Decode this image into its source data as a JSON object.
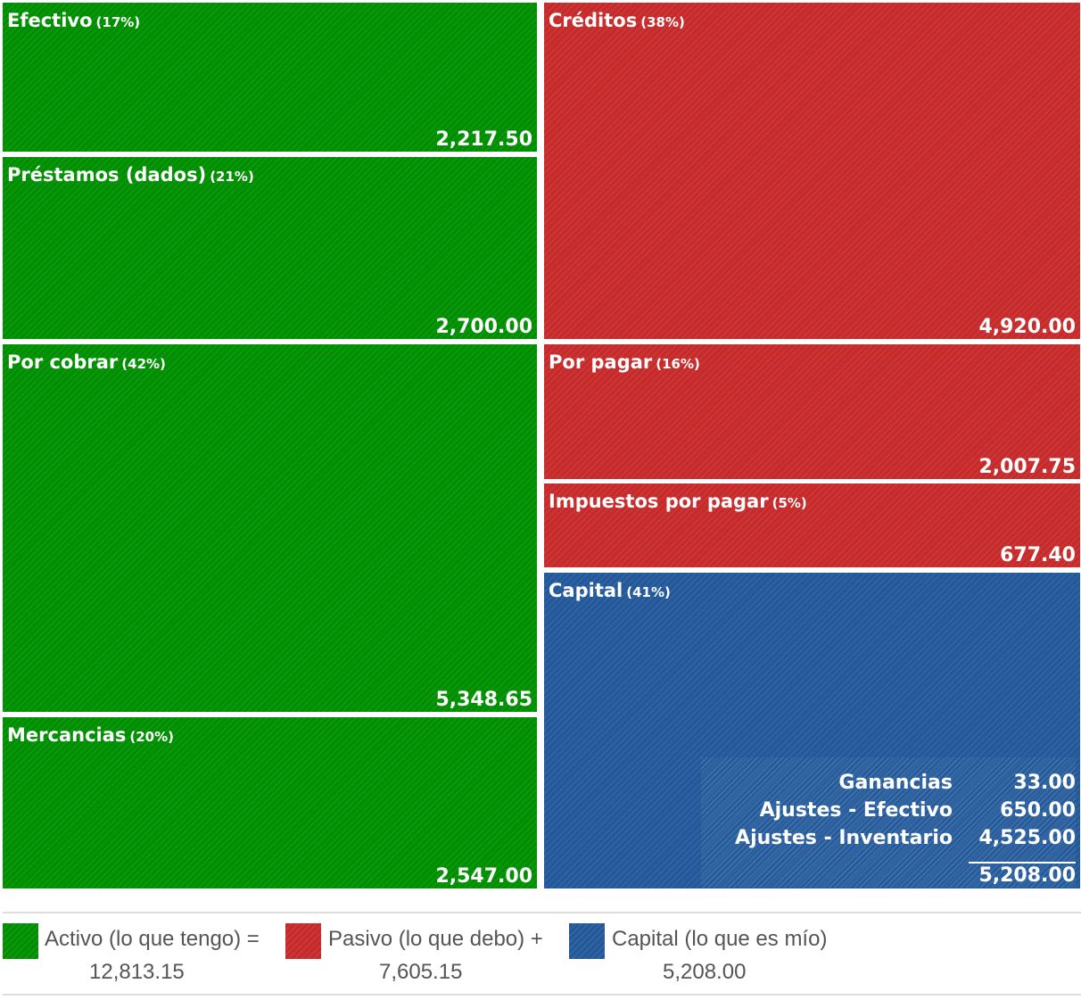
{
  "colors": {
    "activo": "#008f00",
    "pasivo": "#c72a2a",
    "capital": "#23599a"
  },
  "chart_data": {
    "type": "treemap",
    "groups": [
      {
        "name": "Activo",
        "items": [
          {
            "label": "Efectivo",
            "pct": "(17%)",
            "value": "2,217.50"
          },
          {
            "label": "Préstamos (dados)",
            "pct": "(21%)",
            "value": "2,700.00"
          },
          {
            "label": "Por cobrar",
            "pct": "(42%)",
            "value": "5,348.65"
          },
          {
            "label": "Mercancias",
            "pct": "(20%)",
            "value": "2,547.00"
          }
        ]
      },
      {
        "name": "Pasivo",
        "items": [
          {
            "label": "Créditos",
            "pct": "(38%)",
            "value": "4,920.00"
          },
          {
            "label": "Por pagar",
            "pct": "(16%)",
            "value": "2,007.75"
          },
          {
            "label": "Impuestos por pagar",
            "pct": "(5%)",
            "value": "677.40"
          }
        ]
      },
      {
        "name": "Capital",
        "items": [
          {
            "label": "Capital",
            "pct": "(41%)",
            "value": "5,208.00"
          }
        ]
      }
    ],
    "capital_breakdown": [
      {
        "label": "Ganancias",
        "value": "33.00"
      },
      {
        "label": "Ajustes - Efectivo",
        "value": "650.00"
      },
      {
        "label": "Ajustes - Inventario",
        "value": "4,525.00"
      }
    ],
    "capital_total": "5,208.00"
  },
  "legend": [
    {
      "label": "Activo (lo que tengo) =",
      "total": "12,813.15"
    },
    {
      "label": "Pasivo (lo que debo) +",
      "total": "7,605.15"
    },
    {
      "label": "Capital (lo que es mío)",
      "total": "5,208.00"
    }
  ]
}
